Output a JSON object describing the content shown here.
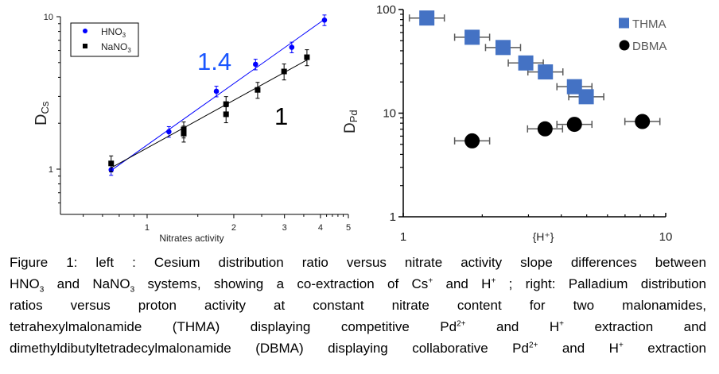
{
  "chart_data": [
    {
      "type": "scatter",
      "panel": "left",
      "xlabel": "Nitrates activity",
      "ylabel": {
        "main": "D",
        "sub": "Cs"
      },
      "xscale": "log",
      "yscale": "log",
      "xlim": [
        0.5,
        5
      ],
      "ylim": [
        0.5,
        10
      ],
      "xticks": [
        "1",
        "2",
        "3",
        "4",
        "5"
      ],
      "xtick_values": [
        1,
        2,
        3,
        4,
        5
      ],
      "yticks": [
        "1",
        "10"
      ],
      "ytick_values": [
        1,
        10
      ],
      "grid": false,
      "legend_placement": "top-left",
      "series": [
        {
          "name": "HNO",
          "name_sub": "3",
          "color": "#0000ff",
          "marker": "circle",
          "x": [
            0.75,
            1.19,
            1.74,
            2.38,
            3.18,
            4.13
          ],
          "y": [
            0.99,
            1.76,
            3.24,
            4.87,
            6.3,
            9.5
          ],
          "yerr_rel": 0.08,
          "fit": {
            "x": [
              0.75,
              4.13
            ],
            "y": [
              0.98,
              9.6
            ]
          }
        },
        {
          "name": "NaNO",
          "name_sub": "3",
          "color": "#000000",
          "marker": "square",
          "x": [
            0.75,
            1.34,
            1.34,
            1.88,
            1.88,
            2.42,
            2.99,
            3.59
          ],
          "y": [
            1.09,
            1.82,
            1.71,
            2.67,
            2.29,
            3.31,
            4.37,
            5.42
          ],
          "yerr_rel": 0.12,
          "fit": {
            "x": [
              0.75,
              3.59
            ],
            "y": [
              1.02,
              5.2
            ]
          }
        }
      ],
      "annotations": [
        {
          "text": "1.4",
          "color": "#1a56ff"
        },
        {
          "text": "1",
          "color": "#000000"
        }
      ]
    },
    {
      "type": "scatter",
      "panel": "right",
      "xlabel": "{H⁺}",
      "ylabel": {
        "main": "D",
        "sub": "Pd"
      },
      "xscale": "log",
      "yscale": "log",
      "xlim": [
        1,
        10
      ],
      "ylim": [
        1,
        100
      ],
      "xticks": [
        "1",
        "10"
      ],
      "xtick_values": [
        1,
        10
      ],
      "yticks": [
        "1",
        "10",
        "100"
      ],
      "ytick_values": [
        1,
        10,
        100
      ],
      "grid": false,
      "legend_placement": "top-right",
      "series": [
        {
          "name": "THMA",
          "color": "#4472c4",
          "marker": "square",
          "x": [
            1.23,
            1.83,
            2.4,
            2.93,
            3.48,
            4.49,
            4.98
          ],
          "y": [
            82.8,
            54,
            43,
            30.5,
            25,
            18,
            14.4
          ],
          "xerr_rel": 0.166
        },
        {
          "name": "DBMA",
          "color": "#000000",
          "marker": "circle",
          "x": [
            1.83,
            3.47,
            4.49,
            8.15
          ],
          "y": [
            5.4,
            7.05,
            7.8,
            8.3
          ],
          "xerr_rel": 0.166
        }
      ]
    }
  ],
  "caption": [
    [
      {
        "t": "Figure 1: left : Cesium distribution ratio versus nitrate activity slope differences between"
      }
    ],
    [
      {
        "t": "HNO"
      },
      {
        "t": "3",
        "sub": true
      },
      {
        "t": " and NaNO"
      },
      {
        "t": "3",
        "sub": true
      },
      {
        "t": " systems, showing a co-extraction of Cs"
      },
      {
        "t": "+",
        "sup": true
      },
      {
        "t": " and H"
      },
      {
        "t": "+",
        "sup": true
      },
      {
        "t": " ; right: Palladium distribution"
      }
    ],
    [
      {
        "t": "ratios versus proton activity at constant nitrate content for two malonamides,"
      }
    ],
    [
      {
        "t": "tetrahexylmalonamide (THMA) displaying competitive Pd"
      },
      {
        "t": "2+",
        "sup": true
      },
      {
        "t": " and H"
      },
      {
        "t": "+",
        "sup": true
      },
      {
        "t": " extraction and"
      }
    ],
    [
      {
        "t": "dimethyldibutyltetradecylmalonamide (DBMA) displaying collaborative Pd"
      },
      {
        "t": "2+",
        "sup": true
      },
      {
        "t": " and H"
      },
      {
        "t": "+",
        "sup": true
      },
      {
        "t": " extraction"
      }
    ]
  ]
}
